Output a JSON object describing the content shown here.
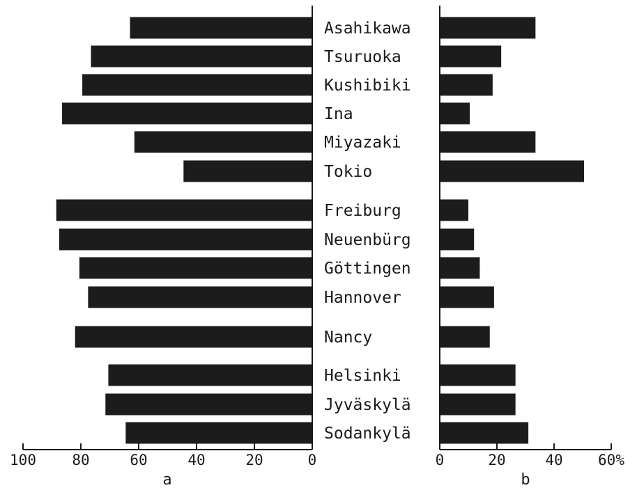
{
  "chart_data": {
    "type": "bar",
    "categories": [
      "Asahikawa",
      "Tsuruoka",
      "Kushibiki",
      "Ina",
      "Miyazaki",
      "Tokio",
      "Freiburg",
      "Neuenbürg",
      "Göttingen",
      "Hannover",
      "Nancy",
      "Helsinki",
      "Jyväskylä",
      "Sodankylä"
    ],
    "panels": [
      {
        "label": "a",
        "direction": "leftward",
        "xlim": [
          0,
          100
        ],
        "ticks": [
          100,
          80,
          60,
          40,
          20,
          0
        ],
        "tick_labels": [
          "100",
          "80",
          "60",
          "40",
          "20",
          "0"
        ],
        "values": [
          63,
          76.5,
          79.5,
          86.5,
          61.5,
          44.5,
          88.5,
          87.5,
          80.5,
          77.5,
          82,
          70.5,
          71.5,
          64.5
        ]
      },
      {
        "label": "b",
        "direction": "rightward",
        "xlim": [
          0,
          60
        ],
        "ticks": [
          0,
          20,
          40,
          60
        ],
        "tick_labels": [
          "0",
          "20",
          "40",
          "60%"
        ],
        "values": [
          33.5,
          21.5,
          18.5,
          10.5,
          33.5,
          50.5,
          10,
          12,
          14,
          19,
          17.5,
          26.5,
          26.5,
          31
        ]
      }
    ]
  }
}
